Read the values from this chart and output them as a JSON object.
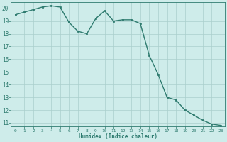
{
  "x": [
    0,
    1,
    2,
    3,
    4,
    5,
    6,
    7,
    8,
    9,
    10,
    11,
    12,
    13,
    14,
    15,
    16,
    17,
    18,
    19,
    20,
    21,
    22,
    23
  ],
  "y": [
    19.5,
    19.7,
    19.9,
    20.1,
    20.2,
    20.1,
    18.9,
    18.2,
    18.0,
    19.2,
    19.8,
    19.0,
    19.1,
    19.1,
    18.8,
    16.3,
    14.8,
    13.0,
    12.8,
    12.0,
    11.6,
    11.2,
    10.9,
    10.8
  ],
  "xlabel": "Humidex (Indice chaleur)",
  "ylim": [
    10.7,
    20.5
  ],
  "xlim": [
    -0.5,
    23.5
  ],
  "yticks": [
    11,
    12,
    13,
    14,
    15,
    16,
    17,
    18,
    19,
    20
  ],
  "xticks": [
    0,
    1,
    2,
    3,
    4,
    5,
    6,
    7,
    8,
    9,
    10,
    11,
    12,
    13,
    14,
    15,
    16,
    17,
    18,
    19,
    20,
    21,
    22,
    23
  ],
  "line_color": "#2d7a6e",
  "marker_color": "#2d7a6e",
  "bg_color": "#ceecea",
  "grid_color": "#aacfcc",
  "axis_color": "#2d7a6e",
  "tick_label_color": "#2d7a6e",
  "xlabel_color": "#2d7a6e",
  "marker": "s",
  "marker_size": 2.0,
  "line_width": 1.0
}
